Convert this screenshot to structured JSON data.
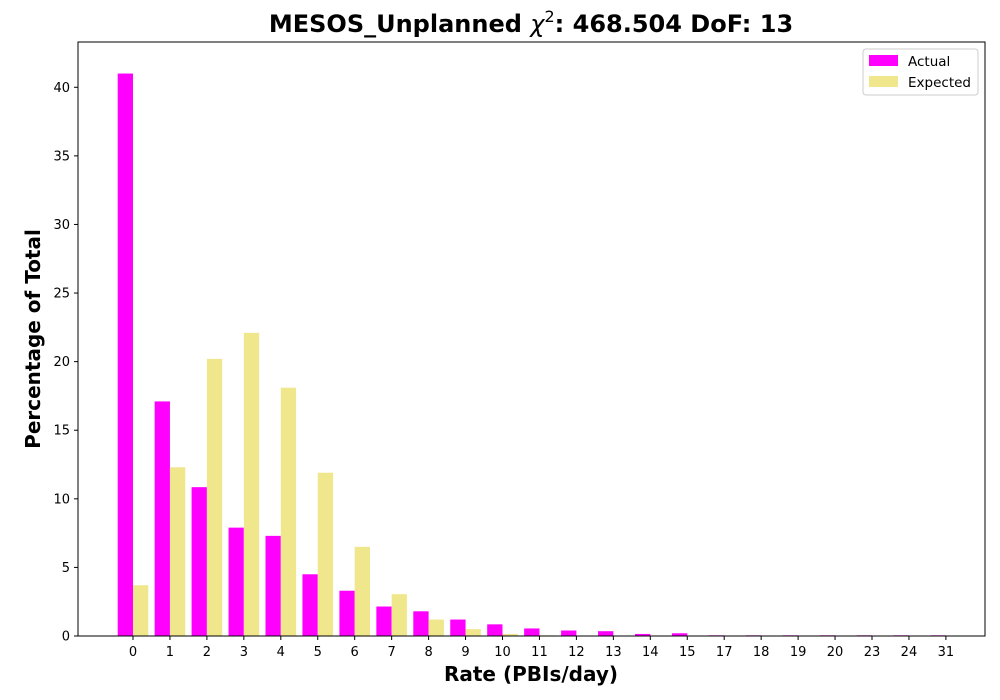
{
  "chart_data": {
    "type": "bar",
    "title_prefix": "MESOS_Unplanned ",
    "title_chi": "χ",
    "title_sup": "2",
    "title_suffix": ": 468.504 DoF: 13",
    "xlabel": "Rate (PBIs/day)",
    "ylabel": "Percentage of Total",
    "categories": [
      "0",
      "1",
      "2",
      "3",
      "4",
      "5",
      "6",
      "7",
      "8",
      "9",
      "10",
      "11",
      "12",
      "13",
      "14",
      "15",
      "17",
      "18",
      "19",
      "20",
      "23",
      "24",
      "31"
    ],
    "yticks": [
      0,
      5,
      10,
      15,
      20,
      25,
      30,
      35,
      40
    ],
    "ylim": [
      0,
      43.3
    ],
    "grid": false,
    "legend_position": "top-right",
    "series": [
      {
        "name": "Actual",
        "color": "#ff00ff",
        "values": [
          41.0,
          17.1,
          10.85,
          7.9,
          7.3,
          4.5,
          3.3,
          2.15,
          1.8,
          1.2,
          0.85,
          0.55,
          0.4,
          0.35,
          0.15,
          0.2,
          0.05,
          0.05,
          0.05,
          0.05,
          0.05,
          0.05,
          0.05
        ]
      },
      {
        "name": "Expected",
        "color": "#f0e68c",
        "values": [
          3.7,
          12.3,
          20.2,
          22.1,
          18.1,
          11.9,
          6.5,
          3.05,
          1.2,
          0.5,
          0.15,
          0.05,
          0.02,
          0.01,
          0.0,
          0.0,
          0.0,
          0.0,
          0.0,
          0.0,
          0.0,
          0.0,
          0.0
        ]
      }
    ]
  }
}
